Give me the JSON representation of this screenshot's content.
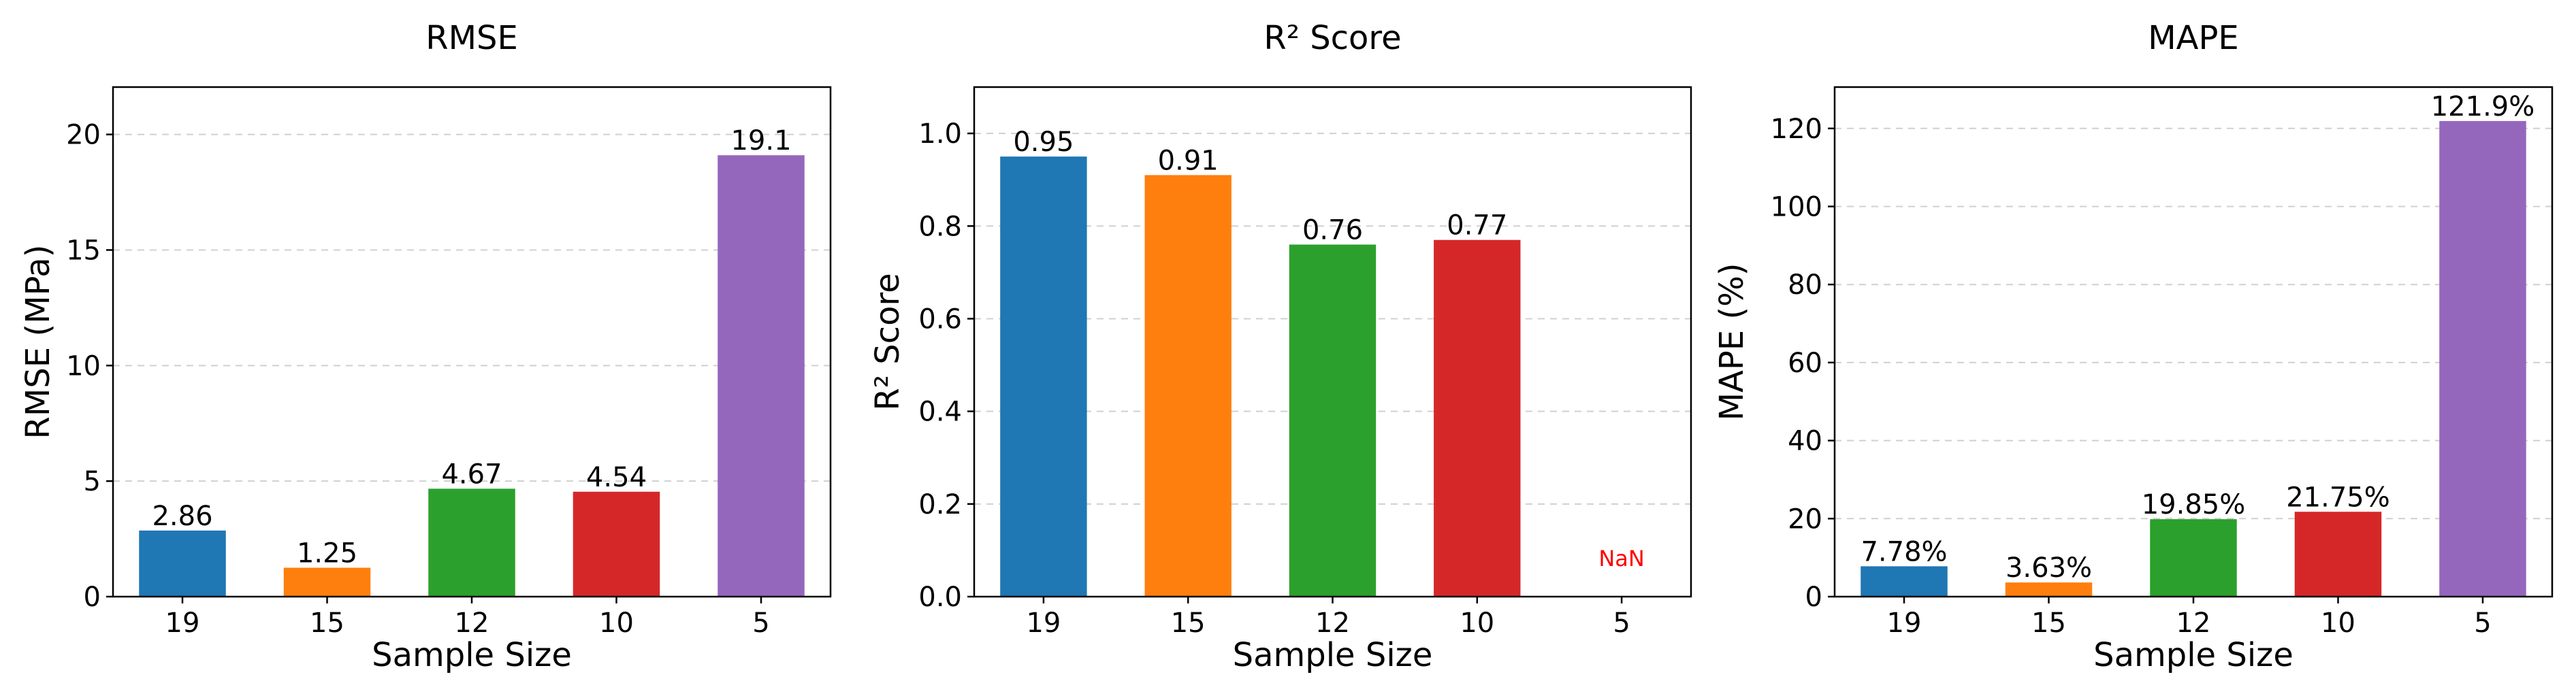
{
  "chart_data": [
    {
      "type": "bar",
      "title": "RMSE",
      "xlabel": "Sample Size",
      "ylabel": "RMSE (MPa)",
      "categories": [
        "19",
        "15",
        "12",
        "10",
        "5"
      ],
      "values": [
        2.86,
        1.25,
        4.67,
        4.54,
        19.1
      ],
      "data_labels": [
        "2.86",
        "1.25",
        "4.67",
        "4.54",
        "19.1"
      ],
      "colors": [
        "#1f77b4",
        "#ff7f0e",
        "#2ca02c",
        "#d62728",
        "#9467bd"
      ],
      "ylim": [
        0,
        22.05
      ],
      "yticks": [
        0,
        5,
        10,
        15,
        20
      ],
      "ytick_labels": [
        "0",
        "5",
        "10",
        "15",
        "20"
      ],
      "grid": "horizontal dashed"
    },
    {
      "type": "bar",
      "title": "R² Score",
      "xlabel": "Sample Size",
      "ylabel": "R² Score",
      "categories": [
        "19",
        "15",
        "12",
        "10",
        "5"
      ],
      "values": [
        0.95,
        0.91,
        0.76,
        0.77,
        null
      ],
      "data_labels": [
        "0.95",
        "0.91",
        "0.76",
        "0.77",
        "NaN"
      ],
      "colors": [
        "#1f77b4",
        "#ff7f0e",
        "#2ca02c",
        "#d62728",
        "#9467bd"
      ],
      "nan_color": "#ff0000",
      "ylim": [
        0,
        1.1
      ],
      "yticks": [
        0,
        0.2,
        0.4,
        0.6,
        0.8,
        1.0
      ],
      "ytick_labels": [
        "0.0",
        "0.2",
        "0.4",
        "0.6",
        "0.8",
        "1.0"
      ],
      "grid": "horizontal dashed"
    },
    {
      "type": "bar",
      "title": "MAPE",
      "xlabel": "Sample Size",
      "ylabel": "MAPE (%)",
      "categories": [
        "19",
        "15",
        "12",
        "10",
        "5"
      ],
      "values": [
        7.78,
        3.63,
        19.85,
        21.75,
        121.9
      ],
      "data_labels": [
        "7.78%",
        "3.63%",
        "19.85%",
        "21.75%",
        "121.9%"
      ],
      "colors": [
        "#1f77b4",
        "#ff7f0e",
        "#2ca02c",
        "#d62728",
        "#9467bd"
      ],
      "ylim": [
        0,
        130.6
      ],
      "yticks": [
        0,
        20,
        40,
        60,
        80,
        100,
        120
      ],
      "ytick_labels": [
        "0",
        "20",
        "40",
        "60",
        "80",
        "100",
        "120"
      ],
      "grid": "horizontal dashed"
    }
  ]
}
